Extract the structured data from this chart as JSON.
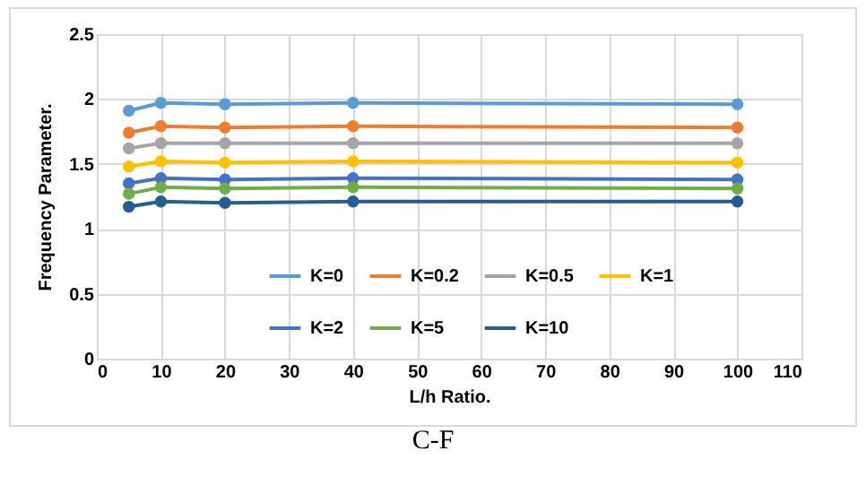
{
  "chart_data": {
    "type": "line",
    "xlabel": "L/h Ratio.",
    "ylabel": "Frequency Parameter.",
    "x": [
      5,
      10,
      20,
      40,
      100
    ],
    "series": [
      {
        "name": "K=0",
        "color": "#5b9bd5",
        "values": [
          1.91,
          1.97,
          1.96,
          1.97,
          1.96
        ]
      },
      {
        "name": "K=0.2",
        "color": "#ed7d31",
        "values": [
          1.74,
          1.79,
          1.78,
          1.79,
          1.78
        ]
      },
      {
        "name": "K=0.5",
        "color": "#a5a5a5",
        "values": [
          1.62,
          1.66,
          1.66,
          1.66,
          1.66
        ]
      },
      {
        "name": "K=1",
        "color": "#ffc000",
        "values": [
          1.48,
          1.52,
          1.51,
          1.52,
          1.51
        ]
      },
      {
        "name": "K=2",
        "color": "#4472c4",
        "values": [
          1.35,
          1.39,
          1.38,
          1.39,
          1.38
        ]
      },
      {
        "name": "K=5",
        "color": "#70ad47",
        "values": [
          1.27,
          1.32,
          1.31,
          1.32,
          1.31
        ]
      },
      {
        "name": "K=10",
        "color": "#255e91",
        "values": [
          1.17,
          1.21,
          1.2,
          1.21,
          1.21
        ]
      }
    ],
    "xlim": [
      0,
      110
    ],
    "xticks": [
      0,
      10,
      20,
      30,
      40,
      50,
      60,
      70,
      80,
      90,
      100,
      110
    ],
    "ylim": [
      0,
      2.5
    ],
    "yticks": [
      0,
      0.5,
      1,
      1.5,
      2,
      2.5
    ],
    "grid": true,
    "legend": "bottom",
    "marker": "circle",
    "line_style": "solid",
    "annotations": [
      "C-F"
    ]
  }
}
